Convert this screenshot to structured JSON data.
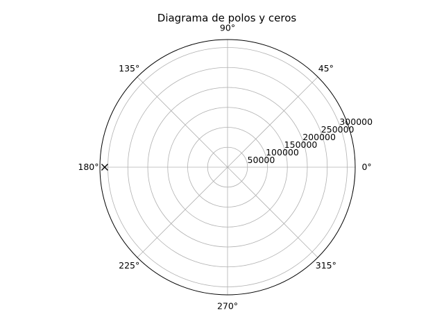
{
  "chart_data": {
    "type": "scatter",
    "projection": "polar",
    "title": "Diagrama de polos y ceros",
    "angle_unit": "degrees",
    "angle_ticks": [
      0,
      45,
      90,
      135,
      180,
      225,
      270,
      315
    ],
    "angle_tick_labels": [
      "0°",
      "45°",
      "90°",
      "135°",
      "180°",
      "225°",
      "270°",
      "315°"
    ],
    "r_ticks": [
      50000,
      100000,
      150000,
      200000,
      250000,
      300000
    ],
    "r_tick_labels": [
      "50000",
      "100000",
      "150000",
      "200000",
      "250000",
      "300000"
    ],
    "rlim": [
      0,
      320000
    ],
    "r_label_angle_deg": 22.5,
    "grid": true,
    "series": [
      {
        "marker": "x",
        "color": "#000000",
        "points": [
          {
            "theta_deg": 180,
            "r": 308000
          }
        ]
      }
    ]
  }
}
